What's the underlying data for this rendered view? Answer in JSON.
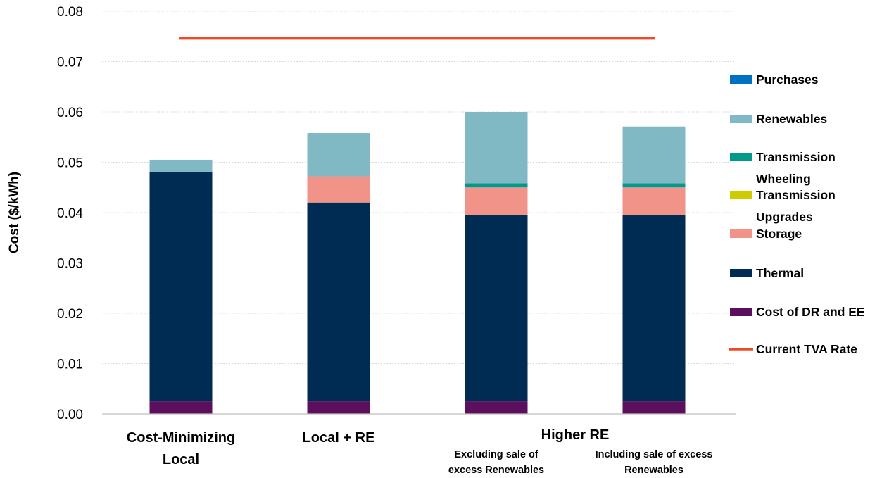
{
  "chart_data": {
    "type": "bar",
    "stacked": true,
    "ylabel": "Cost ($/kWh)",
    "ylim": [
      0,
      0.08
    ],
    "yticks": [
      "0.00",
      "0.01",
      "0.02",
      "0.03",
      "0.04",
      "0.05",
      "0.06",
      "0.07",
      "0.08"
    ],
    "grid": true,
    "legend_position": "right",
    "categories": [
      {
        "label": [
          "Cost-Minimizing",
          "Local"
        ],
        "sublabel": []
      },
      {
        "label": [
          "Local + RE"
        ],
        "sublabel": []
      },
      {
        "label": [],
        "sublabel": [
          "Excluding sale of",
          "excess Renewables"
        ]
      },
      {
        "label": [],
        "sublabel": [
          "Including sale of excess",
          "Renewables"
        ]
      }
    ],
    "group_label": "Higher RE",
    "series": [
      {
        "name": "Cost of DR and EE",
        "color": "#5c0f5c",
        "values": [
          0.0025,
          0.0025,
          0.0025,
          0.0025
        ]
      },
      {
        "name": "Thermal",
        "color": "#002b53",
        "values": [
          0.0455,
          0.0395,
          0.037,
          0.037
        ]
      },
      {
        "name": "Storage",
        "color": "#f2938a",
        "values": [
          0,
          0.0052,
          0.0055,
          0.0055
        ]
      },
      {
        "name": "Transmission Upgrades",
        "color": "#cccc00",
        "values": [
          0,
          0,
          0,
          0
        ]
      },
      {
        "name": "Transmission Wheeling",
        "color": "#00998a",
        "values": [
          0,
          0,
          0.0008,
          0.0008
        ]
      },
      {
        "name": "Renewables",
        "color": "#80b9c4",
        "values": [
          0.0025,
          0.0086,
          0.0142,
          0.0113
        ]
      },
      {
        "name": "Purchases",
        "color": "#0070c0",
        "values": [
          0,
          0,
          0,
          0
        ]
      }
    ],
    "reference_line": {
      "name": "Current TVA Rate",
      "color": "#ef4a24",
      "value": 0.0746
    },
    "legend": [
      {
        "label": [
          "Purchases"
        ],
        "color": "#0070c0",
        "kind": "box"
      },
      {
        "label": [
          "Renewables"
        ],
        "color": "#80b9c4",
        "kind": "box"
      },
      {
        "label": [
          "Transmission",
          "Wheeling"
        ],
        "color": "#00998a",
        "kind": "box"
      },
      {
        "label": [
          "Transmission",
          "Upgrades"
        ],
        "color": "#cccc00",
        "kind": "box"
      },
      {
        "label": [
          "Storage"
        ],
        "color": "#f2938a",
        "kind": "box"
      },
      {
        "label": [
          "Thermal"
        ],
        "color": "#002b53",
        "kind": "box"
      },
      {
        "label": [
          "Cost of DR and EE"
        ],
        "color": "#5c0f5c",
        "kind": "box"
      },
      {
        "label": [
          "Current TVA Rate"
        ],
        "color": "#ef4a24",
        "kind": "line"
      }
    ]
  }
}
